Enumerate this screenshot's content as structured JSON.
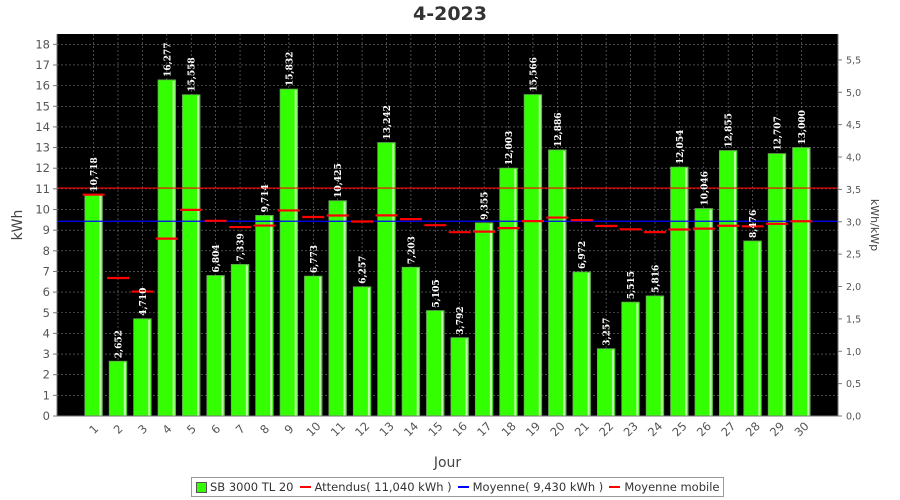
{
  "chart_data": {
    "type": "bar",
    "title": "4-2023",
    "xlabel": "Jour",
    "ylabel": "kWh",
    "y2label": "kWh/kWp",
    "ylim": [
      0,
      18.5
    ],
    "y2lim": [
      0,
      5.9
    ],
    "y_ticks": [
      "0",
      "1",
      "2",
      "3",
      "4",
      "5",
      "6",
      "7",
      "8",
      "9",
      "10",
      "11",
      "12",
      "13",
      "14",
      "15",
      "16",
      "17",
      "18"
    ],
    "y2_ticks": [
      "0,0",
      "0,5",
      "1,0",
      "1,5",
      "2,0",
      "2,5",
      "3,0",
      "3,5",
      "4,0",
      "4,5",
      "5,0",
      "5,5"
    ],
    "y2_tick_values": [
      0,
      0.5,
      1,
      1.5,
      2,
      2.5,
      3,
      3.5,
      4,
      4.5,
      5,
      5.5
    ],
    "grid": true,
    "categories": [
      "1",
      "2",
      "3",
      "4",
      "5",
      "6",
      "7",
      "8",
      "9",
      "10",
      "11",
      "12",
      "13",
      "14",
      "15",
      "16",
      "17",
      "18",
      "19",
      "20",
      "21",
      "22",
      "23",
      "24",
      "25",
      "26",
      "27",
      "28",
      "29",
      "30"
    ],
    "series": [
      {
        "name": "SB 3000 TL 20",
        "kind": "bar",
        "color": "#33ff00",
        "values": [
          10.718,
          2.652,
          4.71,
          16.277,
          15.558,
          6.804,
          7.339,
          9.714,
          15.832,
          6.773,
          10.425,
          6.257,
          13.242,
          7.203,
          5.105,
          3.792,
          9.355,
          12.003,
          15.566,
          12.886,
          6.972,
          3.257,
          5.515,
          5.816,
          12.054,
          10.046,
          12.855,
          8.476,
          12.707,
          13.0
        ],
        "labels": [
          "10,718",
          "2,652",
          "4,710",
          "16,277",
          "15,558",
          "6,804",
          "7,339",
          "9,714",
          "15,832",
          "6,773",
          "10,425",
          "6,257",
          "13,242",
          "7,203",
          "5,105",
          "3,792",
          "9,355",
          "12,003",
          "15,566",
          "12,886",
          "6,972",
          "3,257",
          "5,515",
          "5,816",
          "12,054",
          "10,046",
          "12,855",
          "8,476",
          "12,707",
          "13,000"
        ]
      },
      {
        "name": "Attendus( 11,040 kWh )",
        "kind": "hline",
        "color": "#ff0000",
        "value": 11.04
      },
      {
        "name": "Moyenne( 9,430 kWh )",
        "kind": "hline",
        "color": "#0000ff",
        "value": 9.43
      },
      {
        "name": "Moyenne mobile",
        "kind": "marker",
        "color": "#ff0000",
        "values": [
          10.718,
          6.685,
          6.027,
          8.589,
          9.983,
          9.453,
          9.151,
          9.222,
          9.956,
          9.638,
          9.709,
          9.421,
          9.715,
          9.536,
          9.241,
          8.901,
          8.928,
          9.099,
          9.438,
          9.611,
          9.485,
          9.202,
          9.041,
          8.905,
          9.031,
          9.073,
          9.213,
          9.187,
          9.308,
          9.43
        ]
      }
    ],
    "legend_position": "bottom"
  },
  "legend": {
    "items": [
      {
        "label": "SB 3000 TL 20",
        "marker": "box",
        "color": "#33ff00"
      },
      {
        "label": "Attendus( 11,040 kWh )",
        "marker": "line",
        "color": "#ff0000"
      },
      {
        "label": "Moyenne( 9,430 kWh )",
        "marker": "line",
        "color": "#0000ff"
      },
      {
        "label": "Moyenne mobile",
        "marker": "line",
        "color": "#ff0000"
      }
    ]
  }
}
